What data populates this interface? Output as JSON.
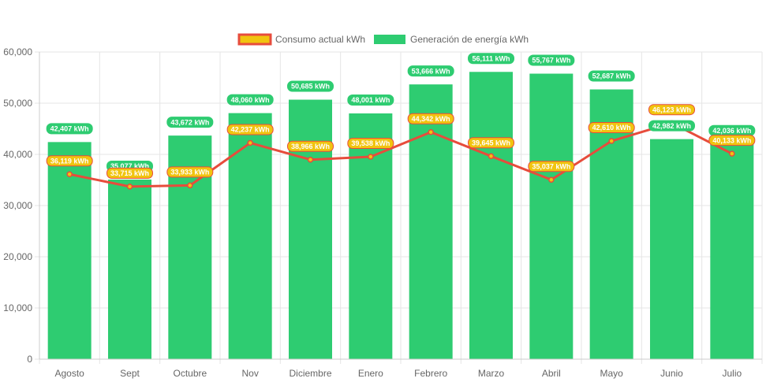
{
  "colors": {
    "bar": "#2ecc71",
    "line": "#e74c3c",
    "point": "#f1c40f",
    "grid": "#e5e5e5",
    "axis": "#666666"
  },
  "chart_data": {
    "type": "bar",
    "categories": [
      "Agosto",
      "Sept",
      "Octubre",
      "Nov",
      "Diciembre",
      "Enero",
      "Febrero",
      "Marzo",
      "Abril",
      "Mayo",
      "Junio",
      "Julio"
    ],
    "series": [
      {
        "name": "Consumo actual kWh",
        "type": "line",
        "values": [
          36119,
          33715,
          33933,
          42237,
          38966,
          39538,
          44342,
          39645,
          35037,
          42610,
          46123,
          40133
        ],
        "labels": [
          "36,119 kWh",
          "33,715 kWh",
          "33,933 kWh",
          "42,237 kWh",
          "38,966 kWh",
          "39,538 kWh",
          "44,342 kWh",
          "39,645 kWh",
          "35,037 kWh",
          "42,610 kWh",
          "46,123 kWh",
          "40,133 kWh"
        ]
      },
      {
        "name": "Generación de energía kWh",
        "type": "bar",
        "values": [
          42407,
          35077,
          43672,
          48060,
          50685,
          48001,
          53666,
          56111,
          55767,
          52687,
          42982,
          42036
        ],
        "labels": [
          "42,407 kWh",
          "35,077 kWh",
          "43,672 kWh",
          "48,060 kWh",
          "50,685 kWh",
          "48,001 kWh",
          "53,666 kWh",
          "56,111 kWh",
          "55,767 kWh",
          "52,687 kWh",
          "42,982 kWh",
          "42,036 kWh"
        ]
      }
    ],
    "yticks": [
      "0",
      "10,000",
      "20,000",
      "30,000",
      "40,000",
      "50,000",
      "60,000"
    ],
    "ylim": [
      0,
      60000
    ],
    "grid": true,
    "legend_position": "top-center"
  }
}
